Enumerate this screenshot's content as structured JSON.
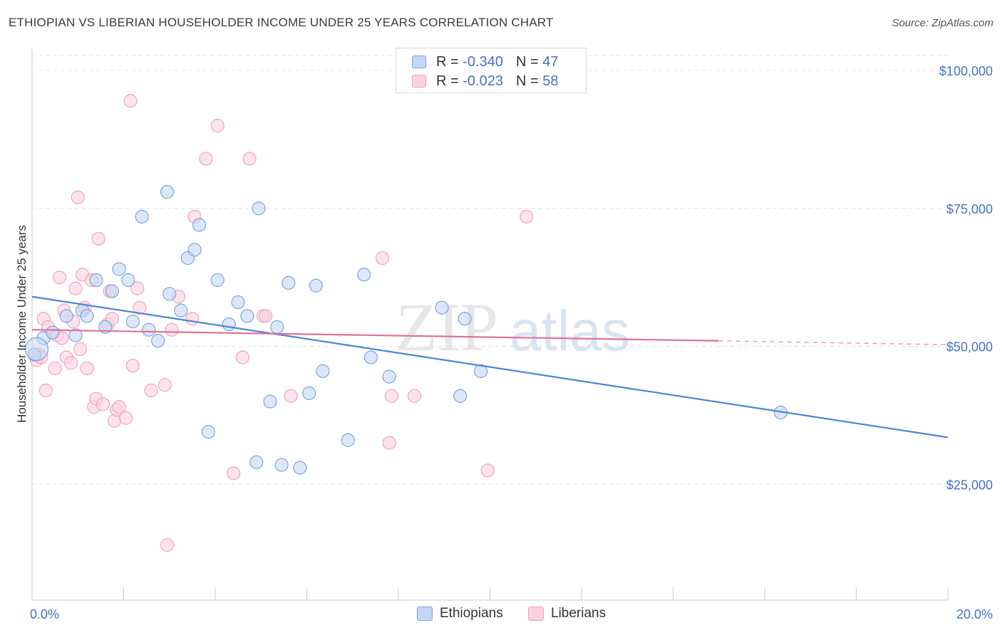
{
  "header": {
    "title": "ETHIOPIAN VS LIBERIAN HOUSEHOLDER INCOME UNDER 25 YEARS CORRELATION CHART",
    "source": "Source: ZipAtlas.com"
  },
  "watermark": {
    "zip": "ZIP",
    "atlas": "atlas"
  },
  "legend": {
    "rows": [
      {
        "r_label": "R =",
        "r_value": "-0.340",
        "n_label": "N =",
        "n_value": "47",
        "color": "#7aa3e0",
        "fill": "#c4d7f5"
      },
      {
        "r_label": "R =",
        "r_value": "-0.023",
        "n_label": "N =",
        "n_value": "58",
        "color": "#f0a0bc",
        "fill": "#fbd1df"
      }
    ]
  },
  "bottom_legend": {
    "ethiopians": "Ethiopians",
    "liberians": "Liberians"
  },
  "chart_data": {
    "type": "scatter",
    "title": "ETHIOPIAN VS LIBERIAN HOUSEHOLDER INCOME UNDER 25 YEARS CORRELATION CHART",
    "xlabel": "",
    "ylabel": "Householder Income Under 25 years",
    "xlim": [
      0,
      20
    ],
    "ylim": [
      4000,
      104000
    ],
    "x_tick_labels": [
      "0.0%",
      "20.0%"
    ],
    "y_ticks": [
      25000,
      50000,
      75000,
      100000
    ],
    "y_tick_labels": [
      "$25,000",
      "$50,000",
      "$75,000",
      "$100,000"
    ],
    "grid": true,
    "legend_position": "top-center",
    "series": [
      {
        "name": "Ethiopians",
        "color": "#4a86d8",
        "fill": "#c4d7f5",
        "trend": {
          "x": [
            0,
            20
          ],
          "y": [
            59000,
            33500
          ]
        },
        "points": [
          [
            0.05,
            48500
          ],
          [
            0.25,
            51500
          ],
          [
            0.45,
            52500
          ],
          [
            0.75,
            55500
          ],
          [
            0.95,
            52000
          ],
          [
            1.1,
            56500
          ],
          [
            1.2,
            55500
          ],
          [
            1.4,
            62000
          ],
          [
            1.6,
            53500
          ],
          [
            1.75,
            60000
          ],
          [
            1.9,
            64000
          ],
          [
            2.1,
            62000
          ],
          [
            2.2,
            54500
          ],
          [
            2.4,
            73500
          ],
          [
            2.55,
            53000
          ],
          [
            2.75,
            51000
          ],
          [
            2.95,
            78000
          ],
          [
            3.0,
            59500
          ],
          [
            3.25,
            56500
          ],
          [
            3.4,
            66000
          ],
          [
            3.55,
            67500
          ],
          [
            3.65,
            72000
          ],
          [
            3.85,
            34500
          ],
          [
            4.05,
            62000
          ],
          [
            4.3,
            54000
          ],
          [
            4.5,
            58000
          ],
          [
            4.7,
            55500
          ],
          [
            4.9,
            29000
          ],
          [
            4.95,
            75000
          ],
          [
            5.2,
            40000
          ],
          [
            5.35,
            53500
          ],
          [
            5.45,
            28500
          ],
          [
            5.6,
            61500
          ],
          [
            5.85,
            28000
          ],
          [
            6.05,
            41500
          ],
          [
            6.2,
            61000
          ],
          [
            6.35,
            45500
          ],
          [
            6.9,
            33000
          ],
          [
            7.25,
            63000
          ],
          [
            7.4,
            48000
          ],
          [
            7.8,
            44500
          ],
          [
            8.95,
            57000
          ],
          [
            9.35,
            41000
          ],
          [
            9.45,
            55000
          ],
          [
            9.8,
            45500
          ],
          [
            16.35,
            38000
          ],
          [
            0.1,
            49500
          ]
        ]
      },
      {
        "name": "Liberians",
        "color": "#e07098",
        "fill": "#fbd1df",
        "trend": {
          "x": [
            0,
            15
          ],
          "y": [
            53000,
            51000
          ],
          "dashed_to": [
            20,
            50300
          ]
        },
        "points": [
          [
            0.1,
            47500
          ],
          [
            0.15,
            48500
          ],
          [
            0.25,
            55000
          ],
          [
            0.3,
            42000
          ],
          [
            0.35,
            53500
          ],
          [
            0.45,
            52500
          ],
          [
            0.5,
            46000
          ],
          [
            0.55,
            52000
          ],
          [
            0.6,
            62500
          ],
          [
            0.7,
            56500
          ],
          [
            0.75,
            48000
          ],
          [
            0.85,
            47000
          ],
          [
            0.9,
            54500
          ],
          [
            0.95,
            60500
          ],
          [
            1.0,
            77000
          ],
          [
            1.05,
            49500
          ],
          [
            1.1,
            63000
          ],
          [
            1.15,
            57000
          ],
          [
            1.2,
            46000
          ],
          [
            1.3,
            62000
          ],
          [
            1.35,
            39000
          ],
          [
            1.4,
            40500
          ],
          [
            1.45,
            69500
          ],
          [
            1.55,
            39500
          ],
          [
            1.65,
            54000
          ],
          [
            1.7,
            60000
          ],
          [
            1.75,
            55000
          ],
          [
            1.8,
            36500
          ],
          [
            1.85,
            38500
          ],
          [
            1.9,
            39000
          ],
          [
            2.05,
            37000
          ],
          [
            2.15,
            94500
          ],
          [
            2.2,
            46500
          ],
          [
            2.3,
            60500
          ],
          [
            2.35,
            57000
          ],
          [
            2.6,
            42000
          ],
          [
            2.9,
            43000
          ],
          [
            2.95,
            14000
          ],
          [
            3.05,
            53000
          ],
          [
            3.2,
            59000
          ],
          [
            3.5,
            55000
          ],
          [
            3.55,
            73500
          ],
          [
            3.8,
            84000
          ],
          [
            4.05,
            90000
          ],
          [
            4.4,
            27000
          ],
          [
            4.6,
            48000
          ],
          [
            4.75,
            84000
          ],
          [
            5.05,
            55500
          ],
          [
            5.1,
            55500
          ],
          [
            5.65,
            41000
          ],
          [
            7.65,
            66000
          ],
          [
            7.8,
            32500
          ],
          [
            7.85,
            41000
          ],
          [
            8.35,
            41000
          ],
          [
            9.95,
            27500
          ],
          [
            10.8,
            73500
          ],
          [
            0.2,
            48000
          ],
          [
            0.65,
            51500
          ]
        ]
      }
    ]
  }
}
